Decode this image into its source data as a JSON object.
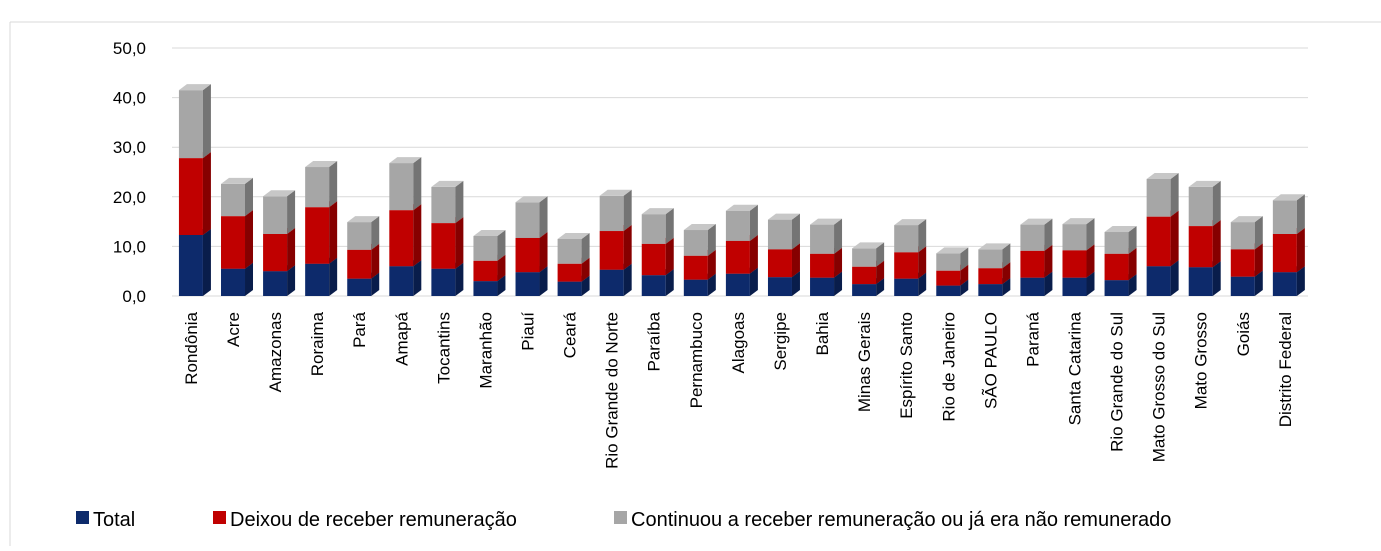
{
  "chart_data": {
    "type": "stacked-bar-3d",
    "categories": [
      "Rondônia",
      "Acre",
      "Amazonas",
      "Roraima",
      "Pará",
      "Amapá",
      "Tocantins",
      "Maranhão",
      "Piauí",
      "Ceará",
      "Rio Grande do Norte",
      "Paraíba",
      "Pernambuco",
      "Alagoas",
      "Sergipe",
      "Bahia",
      "Minas Gerais",
      "Espírito Santo",
      "Rio de Janeiro",
      "SÃO PAULO",
      "Paraná",
      "Santa Catarina",
      "Rio Grande do Sul",
      "Mato Grosso do Sul",
      "Mato Grosso",
      "Goiás",
      "Distrito Federal"
    ],
    "series": [
      {
        "name": "Total",
        "color": "#0d2a6b",
        "values": [
          12.3,
          5.5,
          5.0,
          6.5,
          3.5,
          6.0,
          5.5,
          3.0,
          4.8,
          2.9,
          5.3,
          4.2,
          3.3,
          4.5,
          3.8,
          3.7,
          2.4,
          3.5,
          2.1,
          2.4,
          3.7,
          3.7,
          3.2,
          6.0,
          5.8,
          3.9,
          4.8
        ]
      },
      {
        "name": "Deixou de receber remuneração",
        "color": "#c00000",
        "values": [
          15.5,
          10.6,
          7.5,
          11.4,
          5.8,
          11.3,
          9.2,
          4.1,
          6.9,
          3.6,
          7.8,
          6.3,
          4.8,
          6.6,
          5.6,
          4.8,
          3.5,
          5.3,
          3.0,
          3.2,
          5.4,
          5.5,
          5.3,
          10.0,
          8.3,
          5.5,
          7.7
        ]
      },
      {
        "name": "Continuou a receber remuneração ou já era não remunerado",
        "color": "#a6a6a6",
        "values": [
          13.7,
          6.5,
          7.6,
          8.1,
          5.6,
          9.5,
          7.3,
          5.0,
          7.2,
          5.0,
          7.1,
          6.0,
          5.2,
          6.1,
          6.0,
          5.9,
          3.7,
          5.5,
          3.5,
          3.8,
          5.3,
          5.3,
          4.4,
          7.6,
          7.9,
          5.5,
          6.8
        ]
      }
    ],
    "ylim": [
      0,
      50
    ],
    "yticks": [
      {
        "value": 0,
        "label": "0,0"
      },
      {
        "value": 10,
        "label": "10,0"
      },
      {
        "value": 20,
        "label": "20,0"
      },
      {
        "value": 30,
        "label": "30,0"
      },
      {
        "value": 40,
        "label": "40,0"
      },
      {
        "value": 50,
        "label": "50,0"
      }
    ],
    "grid": true,
    "legend": "bottom"
  }
}
